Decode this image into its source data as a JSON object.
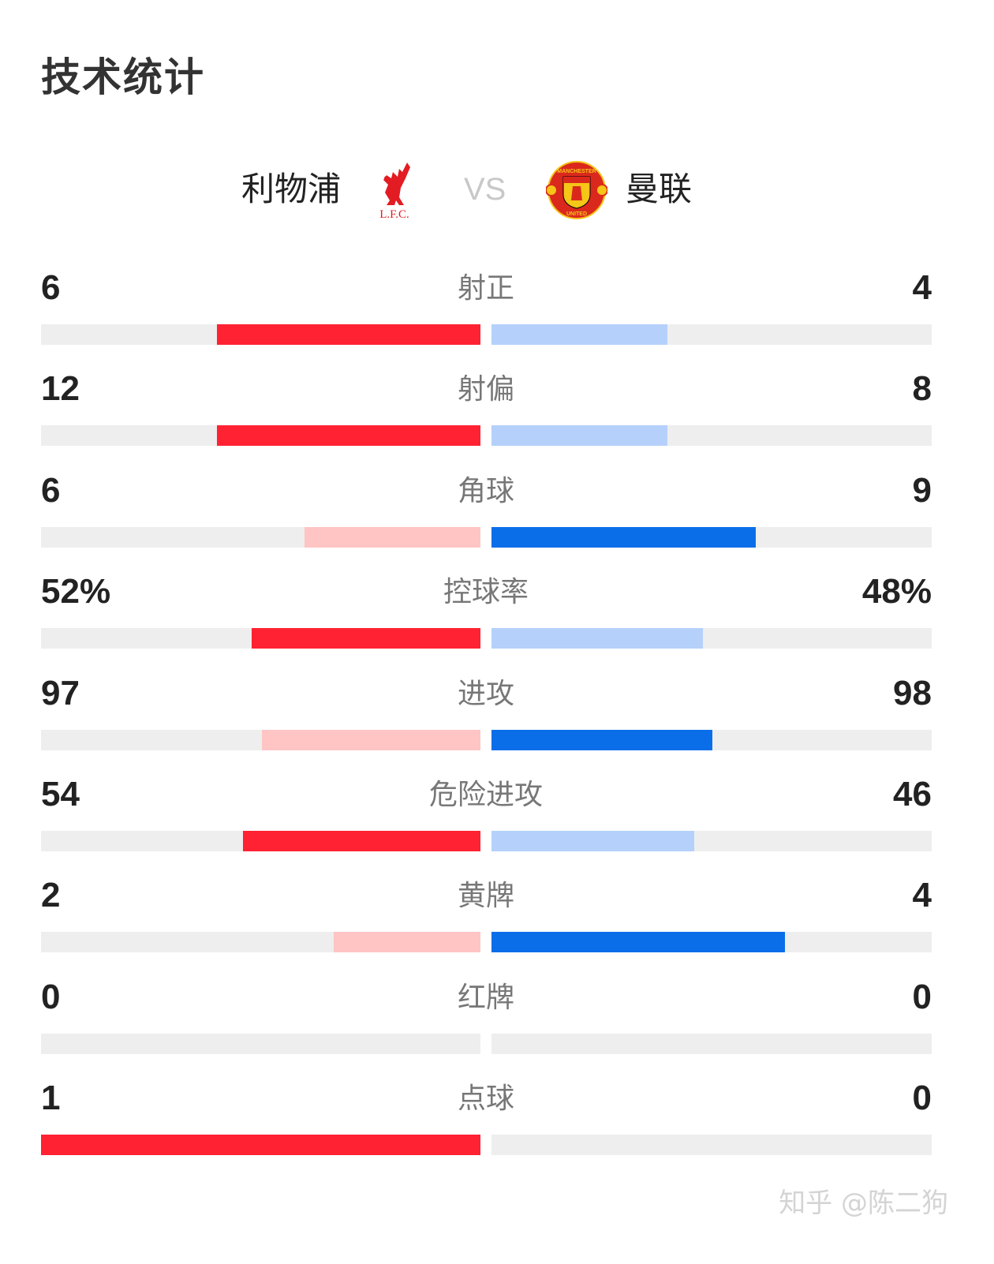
{
  "title": "技术统计",
  "home": {
    "name": "利物浦",
    "logo": "liverpool-fc-crest",
    "logo_text": "L.F.C."
  },
  "vs": "VS",
  "away": {
    "name": "曼联",
    "logo": "manchester-united-crest",
    "logo_text": "MANCHESTER UNITED"
  },
  "colors": {
    "home_strong": "#ff2233",
    "home_weak": "#ffc4c4",
    "away_strong": "#0a6ee8",
    "away_weak": "#b5d0fb",
    "track": "#eeeeee"
  },
  "stats": [
    {
      "label": "射正",
      "home": "6",
      "away": "4",
      "home_val": 6,
      "away_val": 4
    },
    {
      "label": "射偏",
      "home": "12",
      "away": "8",
      "home_val": 12,
      "away_val": 8
    },
    {
      "label": "角球",
      "home": "6",
      "away": "9",
      "home_val": 6,
      "away_val": 9
    },
    {
      "label": "控球率",
      "home": "52%",
      "away": "48%",
      "home_val": 52,
      "away_val": 48
    },
    {
      "label": "进攻",
      "home": "97",
      "away": "98",
      "home_val": 97,
      "away_val": 98
    },
    {
      "label": "危险进攻",
      "home": "54",
      "away": "46",
      "home_val": 54,
      "away_val": 46
    },
    {
      "label": "黄牌",
      "home": "2",
      "away": "4",
      "home_val": 2,
      "away_val": 4
    },
    {
      "label": "红牌",
      "home": "0",
      "away": "0",
      "home_val": 0,
      "away_val": 0
    },
    {
      "label": "点球",
      "home": "1",
      "away": "0",
      "home_val": 1,
      "away_val": 0
    }
  ],
  "watermark": "知乎 @陈二狗"
}
